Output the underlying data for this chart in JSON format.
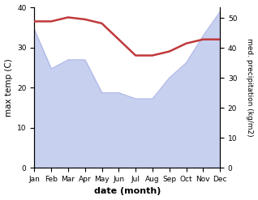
{
  "months": [
    "Jan",
    "Feb",
    "Mar",
    "Apr",
    "May",
    "Jun",
    "Jul",
    "Aug",
    "Sep",
    "Oct",
    "Nov",
    "Dec"
  ],
  "month_indices": [
    0,
    1,
    2,
    3,
    4,
    5,
    6,
    7,
    8,
    9,
    10,
    11
  ],
  "temperature": [
    36.5,
    36.5,
    37.5,
    37.0,
    36.0,
    32.0,
    28.0,
    28.0,
    29.0,
    31.0,
    32.0,
    32.0
  ],
  "precipitation": [
    46,
    33,
    36,
    36,
    25,
    25,
    23,
    23,
    30,
    35,
    44,
    52
  ],
  "temp_color": "#c0393b",
  "precip_fill_color": "#c8d0f0",
  "precip_line_color": "#b0b8e8",
  "temp_ylim": [
    0,
    40
  ],
  "precip_ylim": [
    0,
    53.5
  ],
  "temp_yticks": [
    0,
    10,
    20,
    30,
    40
  ],
  "precip_yticks": [
    0,
    10,
    20,
    30,
    40,
    50
  ],
  "ylabel_left": "max temp (C)",
  "ylabel_right": "med. precipitation (kg/m2)",
  "xlabel": "date (month)",
  "background_color": "#ffffff",
  "fig_width": 3.18,
  "fig_height": 2.47,
  "dpi": 100
}
